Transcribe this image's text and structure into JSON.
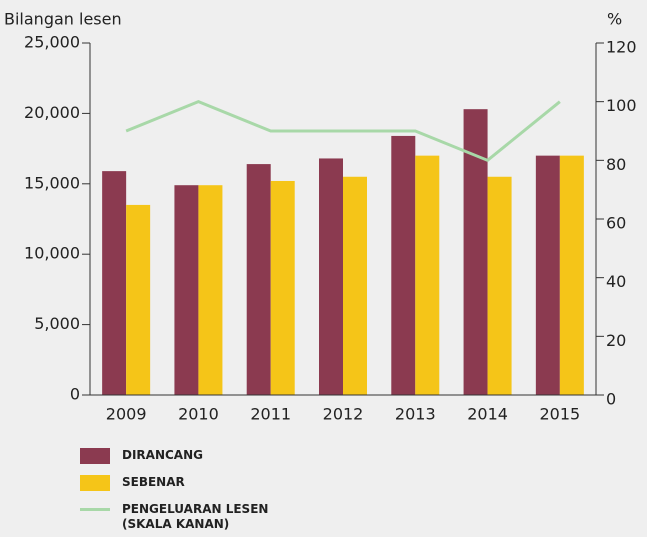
{
  "chart_data": {
    "type": "bar_line",
    "y_label": "Bilangan lesen",
    "y2_label": "%",
    "categories": [
      "2009",
      "2010",
      "2011",
      "2012",
      "2013",
      "2014",
      "2015"
    ],
    "series": [
      {
        "name": "DIRANCANG",
        "color": "#8b3a50",
        "type": "bar",
        "values": [
          15900,
          14900,
          16400,
          16800,
          18400,
          20300,
          17000
        ]
      },
      {
        "name": "SEBENAR",
        "color": "#f5c518",
        "type": "bar",
        "values": [
          13500,
          14900,
          15200,
          15500,
          17000,
          15500,
          17000
        ]
      },
      {
        "name": "PENGELUARAN LESEN (SKALA KANAN)",
        "color": "#a8d8a8",
        "type": "line",
        "axis": "y2",
        "values": [
          90,
          100,
          90,
          90,
          90,
          80,
          100
        ]
      }
    ],
    "ylim": [
      0,
      25000
    ],
    "yticks": [
      0,
      {
        "value": 5000,
        "label": "5,000"
      },
      {
        "value": 10000,
        "label": "10,000"
      },
      {
        "value": 15000,
        "label": "15,000"
      },
      {
        "value": 20000,
        "label": "20,000"
      },
      {
        "value": 25000,
        "label": "25,000"
      }
    ],
    "y2lim": [
      0,
      120
    ],
    "y2ticks": [
      0,
      20,
      40,
      60,
      80,
      100,
      120
    ]
  }
}
